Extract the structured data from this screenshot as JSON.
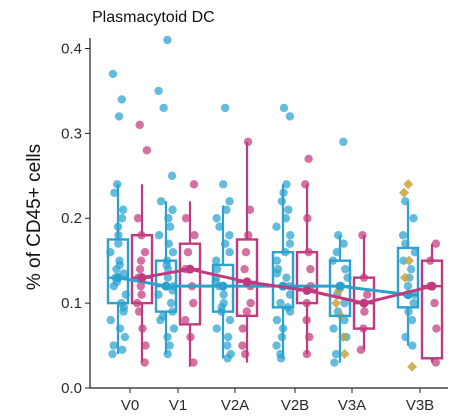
{
  "chart_data": {
    "type": "box",
    "title": "Plasmacytoid DC",
    "ylabel": "% of CD45+ cells",
    "xlabel": "",
    "categories": [
      "V0",
      "V1",
      "V2A",
      "V2B",
      "V3A",
      "V3B"
    ],
    "ylim": [
      0.0,
      0.41
    ],
    "yticks": [
      0.0,
      0.1,
      0.2,
      0.3,
      0.4
    ],
    "ytick_labels": [
      "0.0",
      "0.1",
      "0.2",
      "0.3",
      "0.4"
    ],
    "grid": false,
    "legend": "none",
    "series": [
      {
        "color": "#2aa1cf",
        "boxes": [
          {
            "category": "V0",
            "q1": 0.1,
            "median": 0.13,
            "q3": 0.175,
            "whisker_low": 0.04,
            "whisker_high": 0.24
          },
          {
            "category": "V1",
            "q1": 0.09,
            "median": 0.12,
            "q3": 0.15,
            "whisker_low": 0.04,
            "whisker_high": 0.22
          },
          {
            "category": "V2A",
            "q1": 0.09,
            "median": 0.12,
            "q3": 0.145,
            "whisker_low": 0.035,
            "whisker_high": 0.215
          },
          {
            "category": "V2B",
            "q1": 0.095,
            "median": 0.12,
            "q3": 0.16,
            "whisker_low": 0.035,
            "whisker_high": 0.24
          },
          {
            "category": "V3A",
            "q1": 0.085,
            "median": 0.12,
            "q3": 0.15,
            "whisker_low": 0.03,
            "whisker_high": 0.18
          },
          {
            "category": "V3B",
            "q1": 0.095,
            "median": 0.11,
            "q3": 0.165,
            "whisker_low": 0.05,
            "whisker_high": 0.22
          }
        ],
        "median_line": [
          0.13,
          0.12,
          0.12,
          0.12,
          0.12,
          0.11
        ],
        "points": [
          {
            "category": "V0",
            "y": [
              0.37,
              0.34,
              0.32,
              0.24,
              0.23,
              0.21,
              0.2,
              0.19,
              0.18,
              0.17,
              0.16,
              0.15,
              0.145,
              0.14,
              0.135,
              0.13,
              0.125,
              0.12,
              0.11,
              0.1,
              0.095,
              0.09,
              0.08,
              0.07,
              0.06,
              0.05,
              0.045,
              0.04
            ]
          },
          {
            "category": "V1",
            "y": [
              0.41,
              0.35,
              0.33,
              0.25,
              0.22,
              0.21,
              0.2,
              0.19,
              0.18,
              0.17,
              0.16,
              0.15,
              0.145,
              0.14,
              0.13,
              0.12,
              0.115,
              0.11,
              0.1,
              0.09,
              0.085,
              0.08,
              0.07,
              0.06,
              0.05,
              0.04
            ]
          },
          {
            "category": "V2A",
            "y": [
              0.33,
              0.24,
              0.22,
              0.21,
              0.2,
              0.19,
              0.18,
              0.17,
              0.16,
              0.15,
              0.14,
              0.13,
              0.125,
              0.12,
              0.11,
              0.1,
              0.095,
              0.09,
              0.08,
              0.07,
              0.06,
              0.05,
              0.04,
              0.035
            ]
          },
          {
            "category": "V2B",
            "y": [
              0.33,
              0.32,
              0.24,
              0.23,
              0.22,
              0.21,
              0.2,
              0.19,
              0.18,
              0.17,
              0.16,
              0.15,
              0.14,
              0.135,
              0.13,
              0.12,
              0.11,
              0.1,
              0.095,
              0.09,
              0.08,
              0.07,
              0.06,
              0.05,
              0.04,
              0.035
            ]
          },
          {
            "category": "V3A",
            "y": [
              0.29,
              0.18,
              0.17,
              0.16,
              0.15,
              0.14,
              0.13,
              0.12,
              0.11,
              0.1,
              0.09,
              0.08,
              0.07,
              0.06,
              0.04,
              0.03
            ]
          },
          {
            "category": "V3B",
            "y": [
              0.22,
              0.2,
              0.18,
              0.17,
              0.16,
              0.15,
              0.14,
              0.13,
              0.12,
              0.11,
              0.1,
              0.09,
              0.08,
              0.06,
              0.05
            ]
          }
        ]
      },
      {
        "color": "#c23a7e",
        "boxes": [
          {
            "category": "V0",
            "q1": 0.1,
            "median": 0.13,
            "q3": 0.18,
            "whisker_low": 0.03,
            "whisker_high": 0.24
          },
          {
            "category": "V1",
            "q1": 0.075,
            "median": 0.14,
            "q3": 0.17,
            "whisker_low": 0.025,
            "whisker_high": 0.22
          },
          {
            "category": "V2A",
            "q1": 0.085,
            "median": 0.125,
            "q3": 0.175,
            "whisker_low": 0.03,
            "whisker_high": 0.29
          },
          {
            "category": "V2B",
            "q1": 0.1,
            "median": 0.115,
            "q3": 0.16,
            "whisker_low": 0.04,
            "whisker_high": 0.24
          },
          {
            "category": "V3A",
            "q1": 0.07,
            "median": 0.1,
            "q3": 0.13,
            "whisker_low": 0.045,
            "whisker_high": 0.18
          },
          {
            "category": "V3B",
            "q1": 0.035,
            "median": 0.12,
            "q3": 0.15,
            "whisker_low": 0.03,
            "whisker_high": 0.17
          }
        ],
        "median_line": [
          0.13,
          0.14,
          0.125,
          0.115,
          0.1,
          0.12
        ],
        "points": [
          {
            "category": "V0",
            "y": [
              0.31,
              0.28,
              0.2,
              0.18,
              0.16,
              0.15,
              0.14,
              0.13,
              0.12,
              0.11,
              0.1,
              0.09,
              0.07,
              0.05,
              0.03
            ]
          },
          {
            "category": "V1",
            "y": [
              0.24,
              0.2,
              0.18,
              0.16,
              0.14,
              0.12,
              0.1,
              0.08,
              0.06,
              0.03
            ]
          },
          {
            "category": "V2A",
            "y": [
              0.29,
              0.21,
              0.18,
              0.16,
              0.14,
              0.12,
              0.1,
              0.09,
              0.07,
              0.05,
              0.04
            ]
          },
          {
            "category": "V2B",
            "y": [
              0.27,
              0.24,
              0.2,
              0.16,
              0.14,
              0.12,
              0.1,
              0.08,
              0.06,
              0.04
            ]
          },
          {
            "category": "V3A",
            "y": [
              0.18,
              0.13,
              0.11,
              0.09,
              0.07,
              0.045
            ]
          },
          {
            "category": "V3B",
            "y": [
              0.17,
              0.15,
              0.12,
              0.1,
              0.07,
              0.03
            ]
          }
        ]
      },
      {
        "color": "#c9a23a",
        "points": [
          {
            "category": "V3A",
            "y": [
              0.115,
              0.1,
              0.085,
              0.06,
              0.04
            ]
          },
          {
            "category": "V3B",
            "y": [
              0.24,
              0.23,
              0.15,
              0.13,
              0.11,
              0.025
            ]
          }
        ]
      }
    ]
  }
}
